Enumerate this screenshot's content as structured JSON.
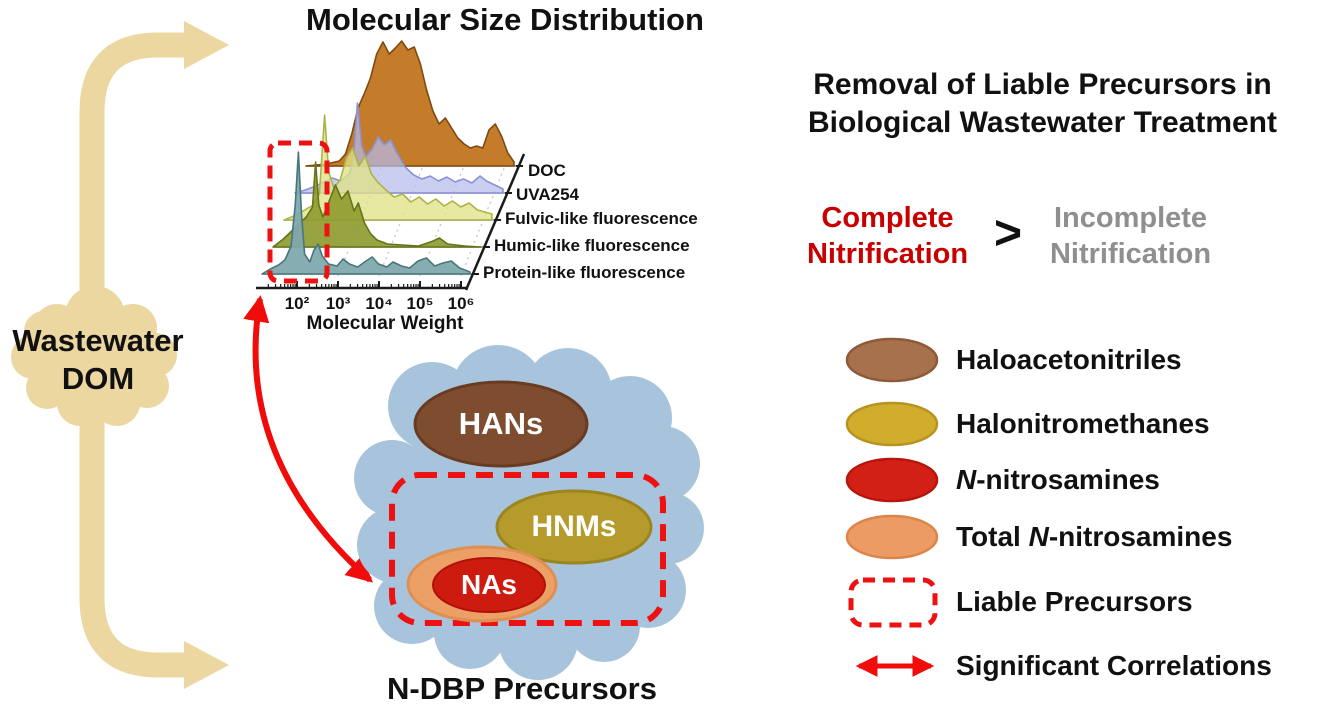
{
  "left": {
    "cloud_line1": "Wastewater",
    "cloud_line2": "DOM",
    "cloud_color": "#ECD7A1",
    "arrow_color": "#ECD7A1"
  },
  "chart": {
    "title": "Molecular Size Distribution",
    "xlabel": "Molecular Weight",
    "x_tick_labels": [
      "10²",
      "10³",
      "10⁴",
      "10⁵",
      "10⁶"
    ],
    "highlight_box_color": "#EE1111"
  },
  "chart_data": {
    "type": "area",
    "variant": "ridgeline-waterfall",
    "title": "Molecular Size Distribution",
    "xlabel": "Molecular Weight",
    "x_scale": "log",
    "x_ticks": [
      100,
      1000,
      10000,
      100000,
      1000000
    ],
    "x_tick_labels": [
      "10²",
      "10³",
      "10⁴",
      "10⁵",
      "10⁶"
    ],
    "grid": "faint dotted diagonals",
    "legend_position": "right of each ridge baseline",
    "annotation": "red dashed box highlights the low molecular weight (~10²) peak region",
    "series": [
      {
        "name": "Protein-like fluorescence",
        "fill": "#7FA9AD",
        "stroke": "#48767B",
        "opacity": 0.95,
        "points": [
          [
            0,
            0
          ],
          [
            0.04,
            5
          ],
          [
            0.08,
            9
          ],
          [
            0.11,
            14
          ],
          [
            0.14,
            28
          ],
          [
            0.16,
            70
          ],
          [
            0.175,
            122
          ],
          [
            0.19,
            60
          ],
          [
            0.205,
            20
          ],
          [
            0.23,
            12
          ],
          [
            0.25,
            24
          ],
          [
            0.27,
            30
          ],
          [
            0.29,
            18
          ],
          [
            0.32,
            10
          ],
          [
            0.36,
            8
          ],
          [
            0.39,
            15
          ],
          [
            0.42,
            10
          ],
          [
            0.46,
            7
          ],
          [
            0.5,
            13
          ],
          [
            0.53,
            17
          ],
          [
            0.56,
            10
          ],
          [
            0.6,
            7
          ],
          [
            0.63,
            12
          ],
          [
            0.67,
            8
          ],
          [
            0.71,
            6
          ],
          [
            0.75,
            13
          ],
          [
            0.79,
            16
          ],
          [
            0.83,
            8
          ],
          [
            0.87,
            11
          ],
          [
            0.91,
            13
          ],
          [
            0.95,
            6
          ],
          [
            1,
            2
          ]
        ]
      },
      {
        "name": "Humic-like fluorescence",
        "fill": "#8E9C2F",
        "stroke": "#66731B",
        "opacity": 0.92,
        "points": [
          [
            0,
            0
          ],
          [
            0.05,
            8
          ],
          [
            0.09,
            16
          ],
          [
            0.13,
            24
          ],
          [
            0.16,
            30
          ],
          [
            0.19,
            40
          ],
          [
            0.205,
            85
          ],
          [
            0.22,
            42
          ],
          [
            0.24,
            30
          ],
          [
            0.27,
            46
          ],
          [
            0.3,
            62
          ],
          [
            0.33,
            48
          ],
          [
            0.36,
            56
          ],
          [
            0.39,
            36
          ],
          [
            0.41,
            44
          ],
          [
            0.44,
            24
          ],
          [
            0.47,
            13
          ],
          [
            0.5,
            7
          ],
          [
            0.55,
            3
          ],
          [
            0.62,
            2
          ],
          [
            0.7,
            1
          ],
          [
            0.77,
            6
          ],
          [
            0.8,
            9
          ],
          [
            0.84,
            3
          ],
          [
            0.92,
            1
          ],
          [
            1,
            0
          ]
        ]
      },
      {
        "name": "Fulvic-like fluorescence",
        "fill": "#E0E287",
        "stroke": "#AEB348",
        "opacity": 0.78,
        "points": [
          [
            0,
            0
          ],
          [
            0.06,
            5
          ],
          [
            0.1,
            10
          ],
          [
            0.14,
            15
          ],
          [
            0.17,
            26
          ],
          [
            0.195,
            105
          ],
          [
            0.215,
            48
          ],
          [
            0.24,
            32
          ],
          [
            0.27,
            40
          ],
          [
            0.3,
            62
          ],
          [
            0.33,
            72
          ],
          [
            0.36,
            54
          ],
          [
            0.39,
            64
          ],
          [
            0.42,
            46
          ],
          [
            0.45,
            38
          ],
          [
            0.49,
            30
          ],
          [
            0.53,
            23
          ],
          [
            0.57,
            26
          ],
          [
            0.61,
            18
          ],
          [
            0.65,
            23
          ],
          [
            0.69,
            16
          ],
          [
            0.73,
            21
          ],
          [
            0.77,
            14
          ],
          [
            0.81,
            19
          ],
          [
            0.85,
            13
          ],
          [
            0.89,
            17
          ],
          [
            0.93,
            10
          ],
          [
            1,
            6
          ]
        ]
      },
      {
        "name": "UVA254",
        "fill": "#B6BBEA",
        "stroke": "#8A92D8",
        "opacity": 0.72,
        "points": [
          [
            0,
            0
          ],
          [
            0.05,
            3
          ],
          [
            0.1,
            7
          ],
          [
            0.14,
            11
          ],
          [
            0.18,
            15
          ],
          [
            0.22,
            12
          ],
          [
            0.26,
            19
          ],
          [
            0.28,
            32
          ],
          [
            0.3,
            90
          ],
          [
            0.32,
            48
          ],
          [
            0.34,
            36
          ],
          [
            0.37,
            44
          ],
          [
            0.4,
            56
          ],
          [
            0.43,
            48
          ],
          [
            0.46,
            53
          ],
          [
            0.49,
            40
          ],
          [
            0.53,
            26
          ],
          [
            0.57,
            18
          ],
          [
            0.61,
            14
          ],
          [
            0.65,
            17
          ],
          [
            0.69,
            12
          ],
          [
            0.73,
            16
          ],
          [
            0.77,
            11
          ],
          [
            0.81,
            14
          ],
          [
            0.85,
            10
          ],
          [
            0.89,
            17
          ],
          [
            0.92,
            12
          ],
          [
            0.96,
            8
          ],
          [
            1,
            4
          ]
        ]
      },
      {
        "name": "DOC",
        "fill": "#C2751F",
        "stroke": "#7E4A10",
        "opacity": 0.95,
        "points": [
          [
            0,
            0
          ],
          [
            0.1,
            2
          ],
          [
            0.16,
            5
          ],
          [
            0.19,
            12
          ],
          [
            0.22,
            32
          ],
          [
            0.25,
            58
          ],
          [
            0.28,
            72
          ],
          [
            0.31,
            88
          ],
          [
            0.34,
            112
          ],
          [
            0.37,
            124
          ],
          [
            0.4,
            112
          ],
          [
            0.43,
            118
          ],
          [
            0.46,
            125
          ],
          [
            0.49,
            116
          ],
          [
            0.52,
            119
          ],
          [
            0.55,
            102
          ],
          [
            0.58,
            76
          ],
          [
            0.61,
            55
          ],
          [
            0.64,
            42
          ],
          [
            0.67,
            48
          ],
          [
            0.7,
            38
          ],
          [
            0.73,
            28
          ],
          [
            0.76,
            22
          ],
          [
            0.79,
            18
          ],
          [
            0.82,
            20
          ],
          [
            0.85,
            18
          ],
          [
            0.88,
            36
          ],
          [
            0.91,
            42
          ],
          [
            0.94,
            30
          ],
          [
            0.97,
            13
          ],
          [
            1,
            4
          ]
        ]
      }
    ]
  },
  "precursors": {
    "cloud_color": "#A8C4DD",
    "hans": "HANs",
    "hnms": "HNMs",
    "nas": "NAs",
    "caption": "N-DBP Precursors",
    "hans_fill": "#7E4C2E",
    "hnms_fill": "#B59B2B",
    "nas_outer_fill": "#ECA066",
    "nas_inner_fill": "#CE1B10",
    "dashed_box_color": "#EE1111"
  },
  "right": {
    "title_line1": "Removal of Liable Precursors in",
    "title_line2": "Biological Wastewater Treatment",
    "complete_line1": "Complete",
    "complete_line2": "Nitrification",
    "gt": ">",
    "incomplete_line1": "Incomplete",
    "incomplete_line2": "Nitrification",
    "complete_color": "#C80000",
    "incomplete_color": "#8F8F8F"
  },
  "legend": {
    "items": [
      {
        "swatch": "ellipse",
        "fill": "#A7714B",
        "stroke": "#8D5A3A",
        "label": "Haloacetonitriles"
      },
      {
        "swatch": "ellipse",
        "fill": "#D2AC2D",
        "stroke": "#B8931E",
        "label": "Halonitromethanes"
      },
      {
        "swatch": "ellipse",
        "fill": "#D32017",
        "stroke": "#B8150E",
        "label": "*N*-nitrosamines"
      },
      {
        "swatch": "ellipse",
        "fill": "#EC9B64",
        "stroke": "#DB854B",
        "label": "Total *N*-nitrosamines"
      },
      {
        "swatch": "dashed-rect",
        "stroke": "#EE1111",
        "label": "Liable Precursors"
      },
      {
        "swatch": "double-arrow",
        "stroke": "#F10C0C",
        "label": "Significant Correlations"
      }
    ]
  },
  "accents": {
    "correlation_arrow_color": "#F10C0C"
  }
}
